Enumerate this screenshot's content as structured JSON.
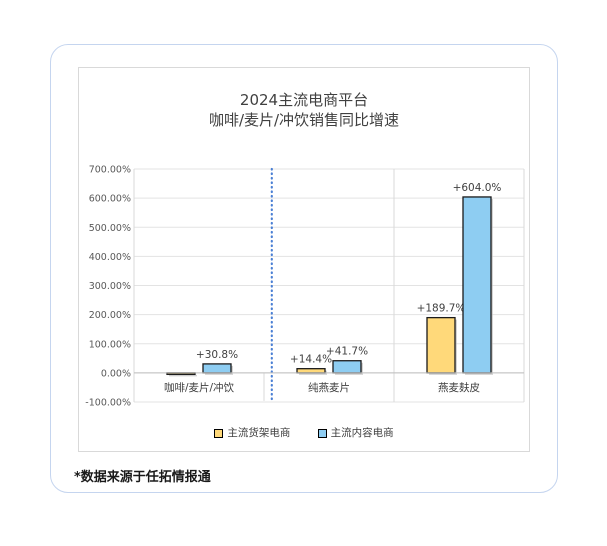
{
  "footnote": "*数据来源于任拓情报通",
  "colors": {
    "shelf": "#ffd97a",
    "content": "#8ecdf2",
    "divider": "#4a7fd4",
    "card_border": "#c5d5ef"
  },
  "chart_data": {
    "type": "bar",
    "title_line1": "2024主流电商平台",
    "title_line2": "咖啡/麦片/冲饮销售同比增速",
    "categories": [
      "咖啡/麦片/冲饮",
      "纯燕麦片",
      "燕麦麸皮"
    ],
    "series": [
      {
        "name": "主流货架电商",
        "values": [
          -2.0,
          14.4,
          189.7
        ],
        "labels": [
          "",
          "+14.4%",
          "+189.7%"
        ]
      },
      {
        "name": "主流内容电商",
        "values": [
          30.8,
          41.7,
          604.0
        ],
        "labels": [
          "+30.8%",
          "+41.7%",
          "+604.0%"
        ]
      }
    ],
    "ylim": [
      -100,
      700
    ],
    "yticks": [
      "-100.00%",
      "0.00%",
      "100.00%",
      "200.00%",
      "300.00%",
      "400.00%",
      "500.00%",
      "600.00%",
      "700.00%"
    ],
    "grid": "horizontal",
    "legend_position": "bottom"
  }
}
